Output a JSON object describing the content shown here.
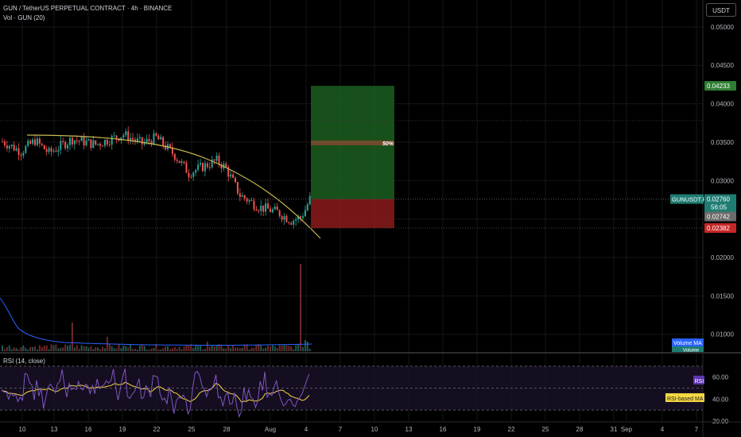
{
  "header": {
    "title": "GUN / TetherUS PERPETUAL CONTRACT · 4h · BINANCE",
    "volume_label": "Vol · GUN (20)",
    "currency": "USDT"
  },
  "rsi_panel": {
    "label": "RSI (14, close)",
    "rsi_tag": "RSI",
    "rsi_ma_tag": "RSI-based MA",
    "levels": [
      "60.00",
      "40.00",
      "20.00"
    ]
  },
  "price_axis": {
    "ticks": [
      "0.05000",
      "0.04500",
      "0.04000",
      "0.03500",
      "0.03000",
      "0.02500",
      "0.02000",
      "0.01500",
      "0.01000"
    ],
    "target_tag": "0.04233",
    "stop_tag": "0.02382",
    "symbol_tag": "GUNUSDT.P",
    "last_price": "0.02760",
    "countdown": "56:05",
    "prev_price": "0.02742",
    "volume_ma_tag": "Volume MA",
    "volume_tag": "Volume"
  },
  "position_tool": {
    "midpoint_label": "50%"
  },
  "time_axis": [
    "10",
    "13",
    "16",
    "19",
    "22",
    "25",
    "28",
    "Aug",
    "4",
    "7",
    "10",
    "13",
    "16",
    "19",
    "22",
    "25",
    "28",
    "31",
    "Sep",
    "4",
    "7"
  ],
  "colors": {
    "up": "#26a69a",
    "down": "#ef5350",
    "curve": "#c8b850",
    "rsi": "#7e57c2",
    "rsi_ma": "#f5d742",
    "profit": "#1b5e20",
    "loss": "#8b1a1a",
    "volume_ma": "#2962ff"
  },
  "chart_data": {
    "type": "candlestick",
    "price_range": [
      0.0078,
      0.0535
    ],
    "pattern": "descending curved trendline (rounding top)",
    "position": {
      "side": "long",
      "entry": 0.0276,
      "target": 0.04233,
      "stop": 0.02382
    },
    "rsi_range": [
      20,
      80
    ],
    "rsi_levels": [
      70,
      50,
      30
    ]
  }
}
